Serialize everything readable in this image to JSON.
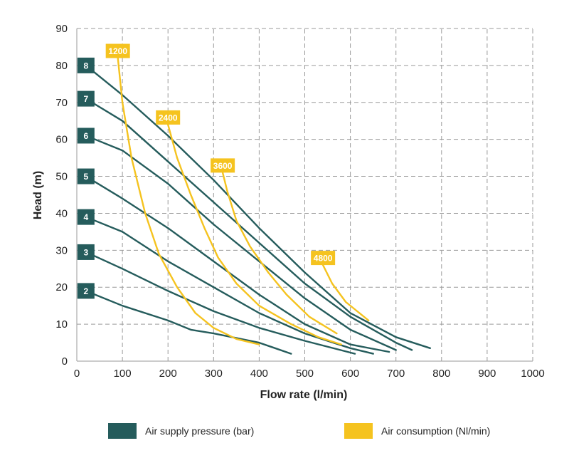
{
  "chart_data": {
    "type": "line",
    "xlabel": "Flow rate (l/min)",
    "ylabel": "Head (m)",
    "xlim": [
      0,
      1000
    ],
    "ylim": [
      0,
      90
    ],
    "x_ticks": [
      0,
      100,
      200,
      300,
      400,
      500,
      600,
      700,
      800,
      900,
      1000
    ],
    "y_ticks": [
      0,
      10,
      20,
      30,
      40,
      50,
      60,
      70,
      80,
      90
    ],
    "grid": true,
    "legend_position": "bottom",
    "legend": [
      {
        "label": "Air supply pressure (bar)",
        "color": "#255c5c"
      },
      {
        "label": "Air consumption (Nl/min)",
        "color": "#f5c31f"
      }
    ],
    "pressure_series": [
      {
        "name": "8",
        "color": "#255c5c",
        "points": [
          [
            20,
            80
          ],
          [
            100,
            72
          ],
          [
            200,
            61
          ],
          [
            300,
            49
          ],
          [
            400,
            36
          ],
          [
            500,
            24
          ],
          [
            600,
            13
          ],
          [
            700,
            6.5
          ],
          [
            775,
            3.5
          ]
        ]
      },
      {
        "name": "7",
        "color": "#255c5c",
        "points": [
          [
            20,
            71
          ],
          [
            100,
            65
          ],
          [
            200,
            54
          ],
          [
            300,
            43
          ],
          [
            400,
            32
          ],
          [
            500,
            21
          ],
          [
            600,
            12
          ],
          [
            700,
            5
          ],
          [
            735,
            3
          ]
        ]
      },
      {
        "name": "6",
        "color": "#255c5c",
        "points": [
          [
            20,
            61
          ],
          [
            100,
            57
          ],
          [
            200,
            48
          ],
          [
            300,
            37
          ],
          [
            400,
            27
          ],
          [
            500,
            17
          ],
          [
            600,
            8.5
          ],
          [
            700,
            3
          ]
        ]
      },
      {
        "name": "5",
        "color": "#255c5c",
        "points": [
          [
            20,
            50
          ],
          [
            100,
            44
          ],
          [
            200,
            36
          ],
          [
            300,
            27
          ],
          [
            400,
            18
          ],
          [
            500,
            10
          ],
          [
            600,
            4.5
          ],
          [
            685,
            2.5
          ]
        ]
      },
      {
        "name": "4",
        "color": "#255c5c",
        "points": [
          [
            20,
            39
          ],
          [
            100,
            35
          ],
          [
            200,
            27
          ],
          [
            300,
            20
          ],
          [
            400,
            13
          ],
          [
            500,
            7.5
          ],
          [
            600,
            3.5
          ],
          [
            650,
            2
          ]
        ]
      },
      {
        "name": "3",
        "color": "#255c5c",
        "points": [
          [
            20,
            29.5
          ],
          [
            100,
            25
          ],
          [
            200,
            19
          ],
          [
            300,
            13.5
          ],
          [
            400,
            9
          ],
          [
            500,
            5.5
          ],
          [
            610,
            2
          ]
        ]
      },
      {
        "name": "2",
        "color": "#255c5c",
        "points": [
          [
            20,
            19
          ],
          [
            100,
            15
          ],
          [
            200,
            11
          ],
          [
            250,
            8.5
          ],
          [
            300,
            7.5
          ],
          [
            400,
            5
          ],
          [
            470,
            2
          ]
        ]
      }
    ],
    "consumption_series": [
      {
        "name": "1200",
        "color": "#f5c31f",
        "points": [
          [
            90,
            82
          ],
          [
            100,
            70
          ],
          [
            120,
            55
          ],
          [
            150,
            40
          ],
          [
            180,
            29
          ],
          [
            220,
            20
          ],
          [
            260,
            13
          ],
          [
            300,
            9
          ],
          [
            350,
            6
          ],
          [
            400,
            4.5
          ]
        ]
      },
      {
        "name": "2400",
        "color": "#f5c31f",
        "points": [
          [
            200,
            64
          ],
          [
            220,
            55
          ],
          [
            250,
            45
          ],
          [
            280,
            36
          ],
          [
            310,
            28
          ],
          [
            350,
            21
          ],
          [
            400,
            15
          ],
          [
            470,
            10
          ],
          [
            530,
            6.5
          ],
          [
            580,
            4.5
          ]
        ]
      },
      {
        "name": "3600",
        "color": "#f5c31f",
        "points": [
          [
            320,
            51
          ],
          [
            330,
            46
          ],
          [
            350,
            38
          ],
          [
            380,
            31
          ],
          [
            420,
            24
          ],
          [
            460,
            18
          ],
          [
            510,
            12
          ],
          [
            570,
            7.5
          ]
        ]
      },
      {
        "name": "4800",
        "color": "#f5c31f",
        "points": [
          [
            540,
            26
          ],
          [
            560,
            21
          ],
          [
            590,
            16
          ],
          [
            620,
            13
          ],
          [
            640,
            11
          ]
        ]
      }
    ]
  }
}
